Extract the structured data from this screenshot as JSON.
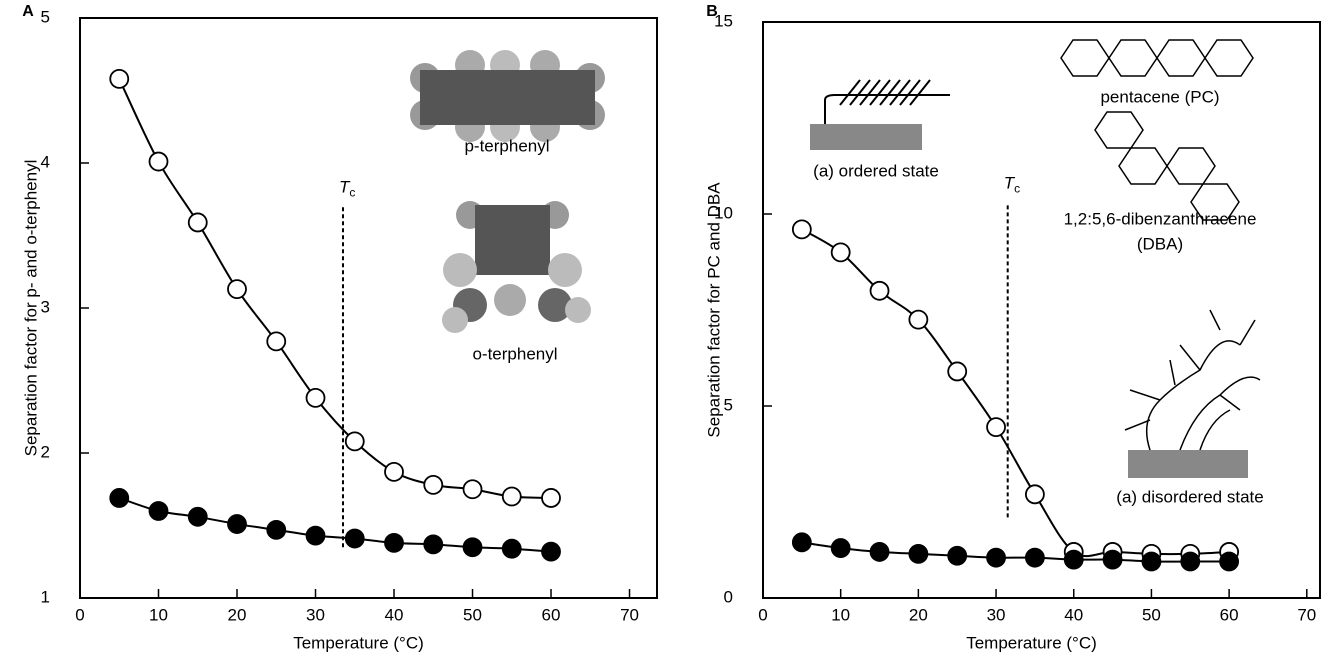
{
  "chart_data": [
    {
      "type": "line",
      "panel": "A",
      "xlabel": "Temperature (°C)",
      "ylabel": "Separation factor for p- and o-terphenyl",
      "x": [
        5,
        10,
        15,
        20,
        25,
        30,
        35,
        40,
        45,
        50,
        55,
        60
      ],
      "series": [
        {
          "marker": "open",
          "color": "#000000",
          "values": [
            4.58,
            4.01,
            3.59,
            3.13,
            2.77,
            2.38,
            2.08,
            1.87,
            1.78,
            1.75,
            1.7,
            1.69
          ]
        },
        {
          "marker": "filled",
          "color": "#000000",
          "values": [
            1.69,
            1.6,
            1.56,
            1.51,
            1.47,
            1.43,
            1.41,
            1.38,
            1.37,
            1.35,
            1.34,
            1.32
          ]
        }
      ],
      "xlim": [
        0,
        73.5
      ],
      "ylim": [
        1,
        5
      ],
      "xticks": [
        0,
        10,
        20,
        30,
        40,
        50,
        60,
        70
      ],
      "yticks": [
        1,
        2,
        3,
        4,
        5
      ],
      "tc": {
        "label": "T",
        "sub": "c",
        "x": 33.5,
        "from": 1.35,
        "to": 3.7
      },
      "annotations": [
        "p-terphenyl",
        "o-terphenyl"
      ]
    },
    {
      "type": "line",
      "panel": "B",
      "xlabel": "Temperature (°C)",
      "ylabel": "Separation factor for PC and DBA",
      "x": [
        5,
        10,
        15,
        20,
        25,
        30,
        35,
        40,
        45,
        50,
        55,
        60
      ],
      "series": [
        {
          "marker": "open",
          "color": "#000000",
          "values": [
            9.6,
            9.0,
            8.0,
            7.25,
            5.9,
            4.45,
            2.7,
            1.2,
            1.2,
            1.15,
            1.15,
            1.2
          ]
        },
        {
          "marker": "filled",
          "color": "#000000",
          "values": [
            1.45,
            1.3,
            1.2,
            1.15,
            1.1,
            1.05,
            1.05,
            1.0,
            1.0,
            0.95,
            0.95,
            0.95
          ]
        }
      ],
      "xlim": [
        0,
        71.7
      ],
      "ylim": [
        0,
        15
      ],
      "xticks": [
        0,
        10,
        20,
        30,
        40,
        50,
        60,
        70
      ],
      "yticks": [
        0,
        5,
        10,
        15
      ],
      "tc": {
        "label": "T",
        "sub": "c",
        "x": 31.5,
        "from": 2.1,
        "to": 10.3
      },
      "annotations": [
        "(a) ordered state",
        "pentacene (PC)",
        "1,2:5,6-dibenzanthracene",
        "(DBA)",
        "(a) disordered state"
      ]
    }
  ]
}
